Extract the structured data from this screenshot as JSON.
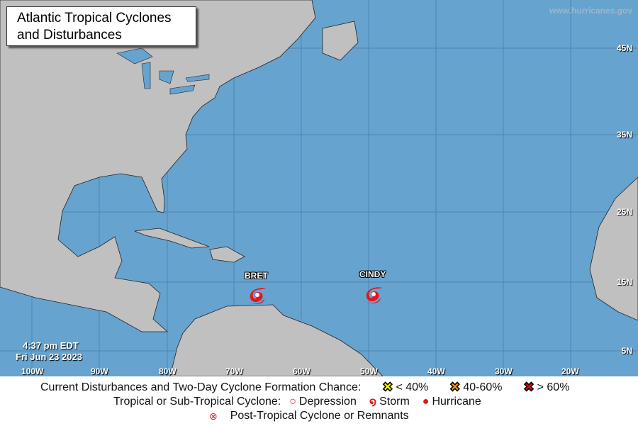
{
  "title": "Atlantic Tropical Cyclones and Disturbances",
  "title_lines": [
    "Atlantic Tropical Cyclones",
    "and Disturbances"
  ],
  "watermark": "www.hurricanes.gov",
  "timestamp": {
    "time": "4:37 pm EDT",
    "date": "Fri Jun 23 2023"
  },
  "latitude_labels": [
    "45N",
    "35N",
    "25N",
    "15N",
    "5N"
  ],
  "longitude_labels": [
    "100W",
    "90W",
    "80W",
    "70W",
    "60W",
    "50W",
    "40W",
    "30W",
    "20W"
  ],
  "storms": [
    {
      "name": "BRET",
      "type": "storm",
      "color": "#e8141c"
    },
    {
      "name": "CINDY",
      "type": "storm",
      "color": "#e8141c"
    }
  ],
  "colors": {
    "ocean": "#66a3cf",
    "land": "#c0c0c0",
    "storm": "#e8141c"
  },
  "legend": {
    "disturbances_label": "Current Disturbances and Two-Day Cyclone Formation Chance:",
    "low": {
      "label": "< 40%",
      "color": "#ffff00"
    },
    "medium": {
      "label": "40-60%",
      "color": "#ff9900"
    },
    "high": {
      "label": "> 60%",
      "color": "#ee0000"
    },
    "cyclone_label": "Tropical or Sub-Tropical Cyclone:",
    "depression": "Depression",
    "storm": "Storm",
    "hurricane": "Hurricane",
    "post_tropical": "Post-Tropical Cyclone or Remnants"
  }
}
